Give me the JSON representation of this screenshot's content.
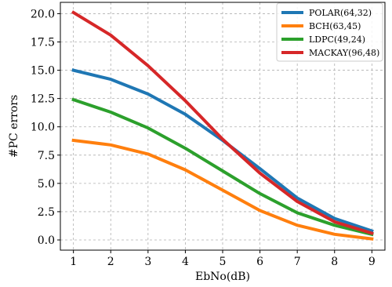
{
  "chart_data": {
    "type": "line",
    "title": "",
    "xlabel": "EbNo(dB)",
    "ylabel": "#PC errors",
    "x": [
      1,
      2,
      3,
      4,
      5,
      6,
      7,
      8,
      9
    ],
    "xlim": [
      0.65,
      9.35
    ],
    "ylim": [
      -0.9,
      21.0
    ],
    "xticks": [
      "1",
      "2",
      "3",
      "4",
      "5",
      "6",
      "7",
      "8",
      "9"
    ],
    "yticks": [
      "0.0",
      "2.5",
      "5.0",
      "7.5",
      "10.0",
      "12.5",
      "15.0",
      "17.5",
      "20.0"
    ],
    "grid": true,
    "legend_position": "top-right",
    "series": [
      {
        "name": "POLAR(64,32)",
        "color": "#1f77b4",
        "values": [
          15.0,
          14.2,
          12.9,
          11.1,
          8.8,
          6.3,
          3.7,
          1.9,
          0.8
        ]
      },
      {
        "name": "BCH(63,45)",
        "color": "#ff7f0e",
        "values": [
          8.8,
          8.4,
          7.6,
          6.2,
          4.4,
          2.6,
          1.3,
          0.5,
          0.1
        ]
      },
      {
        "name": "LDPC(49,24)",
        "color": "#2ca02c",
        "values": [
          12.4,
          11.3,
          9.9,
          8.1,
          6.1,
          4.1,
          2.4,
          1.3,
          0.5
        ]
      },
      {
        "name": "MACKAY(96,48)",
        "color": "#d62728",
        "values": [
          20.1,
          18.1,
          15.4,
          12.3,
          8.9,
          5.9,
          3.4,
          1.6,
          0.6
        ]
      }
    ]
  }
}
